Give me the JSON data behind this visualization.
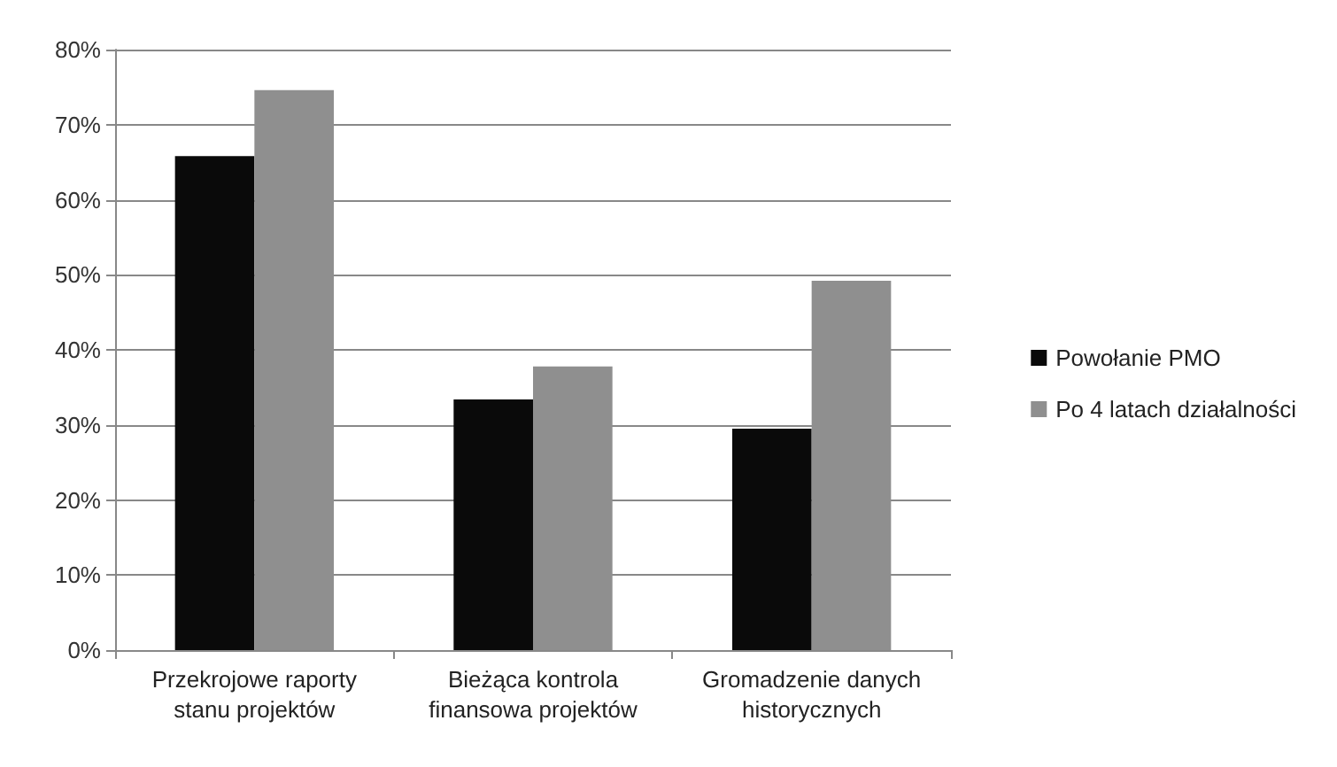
{
  "chart_data": {
    "type": "bar",
    "categories": [
      "Przekrojowe raporty\nstanu projektów",
      "Bieżąca kontrola\nfinansowa projektów",
      "Gromadzenie danych\nhistorycznych"
    ],
    "series": [
      {
        "name": "Powołanie PMO",
        "color": "#0a0a0a",
        "values": [
          65.8,
          33.4,
          29.5
        ]
      },
      {
        "name": "Po 4 latach działalności",
        "color": "#8f8f8f",
        "values": [
          74.6,
          37.8,
          49.2
        ]
      }
    ],
    "ylim": [
      0,
      80
    ],
    "yticks": [
      {
        "value": 0,
        "label": "0%"
      },
      {
        "value": 10,
        "label": "10%"
      },
      {
        "value": 20,
        "label": "20%"
      },
      {
        "value": 30,
        "label": "30%"
      },
      {
        "value": 40,
        "label": "40%"
      },
      {
        "value": 50,
        "label": "50%"
      },
      {
        "value": 60,
        "label": "60%"
      },
      {
        "value": 70,
        "label": "70%"
      },
      {
        "value": 80,
        "label": "80%"
      }
    ],
    "grid": "y",
    "legend": "right"
  }
}
